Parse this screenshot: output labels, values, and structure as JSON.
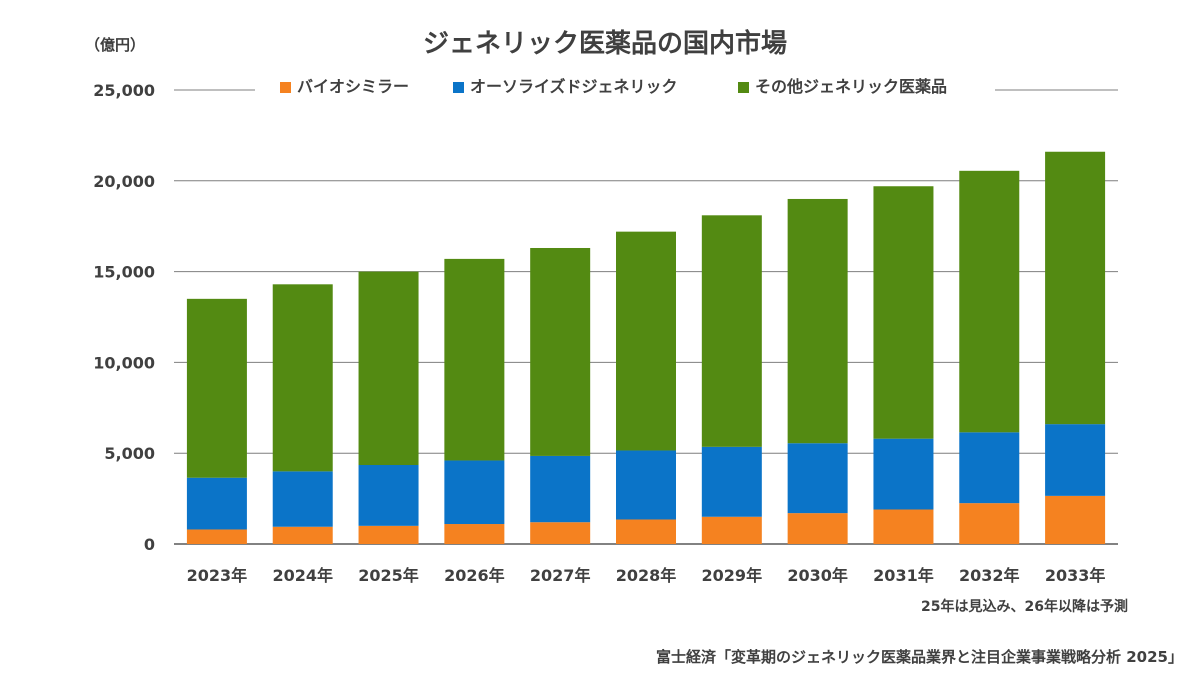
{
  "unit_label": "（億円）",
  "note": "25年は見込み、26年以降は予測",
  "source": "富士経済「変革期のジェネリック医薬品業界と注目企業事業戦略分析 2025」",
  "chart_data": {
    "type": "bar",
    "stacked": true,
    "title": "ジェネリック医薬品の国内市場",
    "categories": [
      "2023年",
      "2024年",
      "2025年",
      "2026年",
      "2027年",
      "2028年",
      "2029年",
      "2030年",
      "2031年",
      "2032年",
      "2033年"
    ],
    "ylim": [
      0,
      25000
    ],
    "yticks": [
      0,
      5000,
      10000,
      15000,
      20000,
      25000
    ],
    "ytick_labels": [
      "0",
      "5,000",
      "10,000",
      "15,000",
      "20,000",
      "25,000"
    ],
    "grid": true,
    "legend_position": "top",
    "series": [
      {
        "name": "バイオシミラー",
        "color": "#f58220",
        "values": [
          800,
          950,
          1000,
          1100,
          1200,
          1350,
          1500,
          1700,
          1900,
          2250,
          2650
        ]
      },
      {
        "name": "オーソライズドジェネリック",
        "color": "#0b74c8",
        "values": [
          2850,
          3050,
          3350,
          3500,
          3650,
          3800,
          3850,
          3850,
          3900,
          3900,
          3950
        ]
      },
      {
        "name": "その他ジェネリック医薬品",
        "color": "#538a12",
        "values": [
          9850,
          10300,
          10650,
          11100,
          11450,
          12050,
          12750,
          13450,
          13900,
          14400,
          15000
        ]
      }
    ]
  }
}
